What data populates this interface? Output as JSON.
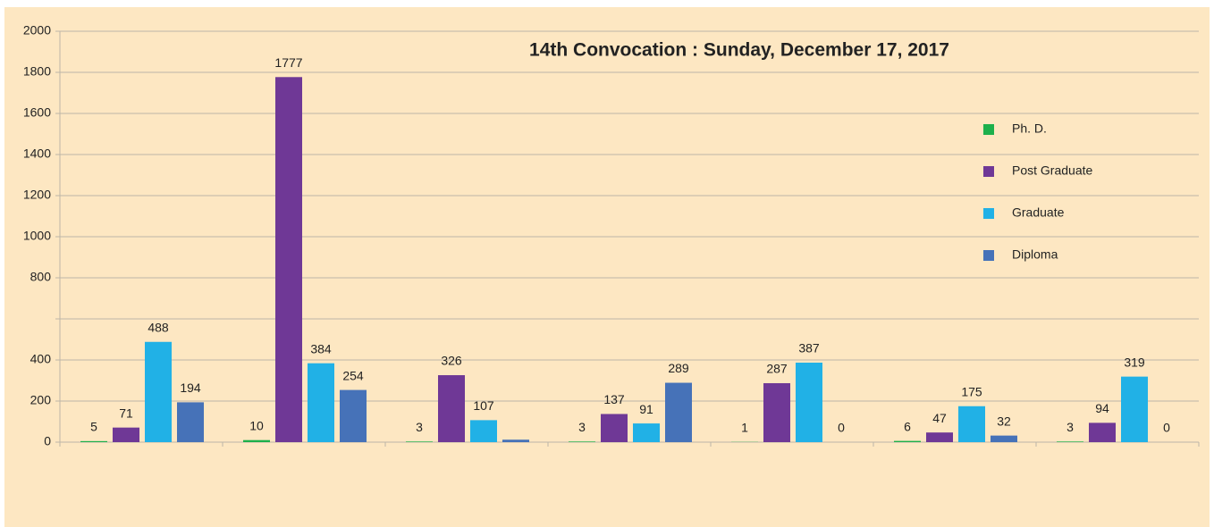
{
  "chart_data": {
    "type": "bar",
    "title": "14th Convocation : Sunday, December 17, 2017",
    "categories": [
      null,
      null,
      null,
      null,
      null,
      null,
      null
    ],
    "series": [
      {
        "name": "Ph. D.",
        "color": "#1db04b",
        "values": [
          5,
          10,
          3,
          3,
          1,
          6,
          3
        ]
      },
      {
        "name": "Post Graduate",
        "color": "#6f3896",
        "values": [
          71,
          1777,
          326,
          137,
          287,
          47,
          94
        ]
      },
      {
        "name": "Graduate",
        "color": "#21b1e6",
        "values": [
          488,
          384,
          107,
          91,
          387,
          175,
          319
        ]
      },
      {
        "name": "Diploma",
        "color": "#4672b8",
        "values": [
          194,
          254,
          12,
          289,
          0,
          32,
          0
        ],
        "value_labels": [
          "194",
          "254",
          null,
          "289",
          "0",
          "32",
          "0"
        ]
      }
    ],
    "ylim": [
      0,
      2000
    ],
    "yticks": [
      0,
      200,
      400,
      {
        "value": 600,
        "label": null
      },
      800,
      1000,
      1200,
      1400,
      1600,
      1800,
      2000
    ],
    "grid": true,
    "legend": "right"
  }
}
